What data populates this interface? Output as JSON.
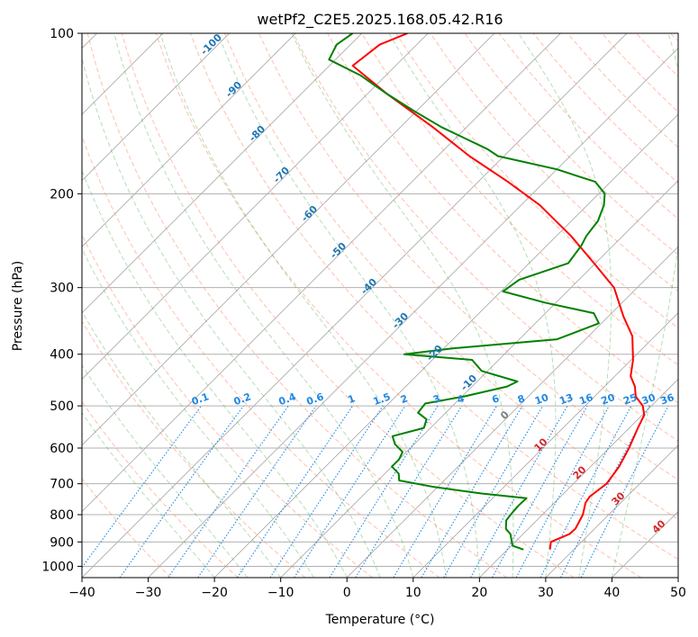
{
  "chart_data": {
    "type": "line",
    "title": "wetPf2_C2E5.2025.168.05.42.R16",
    "xlabel": "Temperature (°C)",
    "ylabel": "Pressure (hPa)",
    "xlim": [
      -40,
      50
    ],
    "ylim": [
      1050,
      100
    ],
    "y_scale": "log",
    "x_ticks": [
      -40,
      -30,
      -20,
      -10,
      0,
      10,
      20,
      30,
      40,
      50
    ],
    "y_ticks": [
      100,
      200,
      300,
      400,
      500,
      600,
      700,
      800,
      900,
      1000
    ],
    "skew": "temperature lines skewed 45°",
    "grid": true,
    "colors": {
      "temperature": "#ff0000",
      "dewpoint": "#008000",
      "isotherm": "#999999",
      "dry_adiabat": "#ff8c6a",
      "moist_adiabat": "#2ca02c",
      "mixing_ratio": "#1e88e5"
    },
    "series": [
      {
        "key": "temperature",
        "color": "#ff0000",
        "points": [
          [
            930,
            26.4
          ],
          [
            900,
            25.4
          ],
          [
            870,
            27.0
          ],
          [
            850,
            27.1
          ],
          [
            800,
            26.1
          ],
          [
            760,
            24.7
          ],
          [
            740,
            24.4
          ],
          [
            700,
            25.0
          ],
          [
            650,
            24.3
          ],
          [
            600,
            23.0
          ],
          [
            550,
            21.3
          ],
          [
            520,
            20.3
          ],
          [
            500,
            18.7
          ],
          [
            480,
            16.2
          ],
          [
            460,
            14.6
          ],
          [
            440,
            12.4
          ],
          [
            410,
            10.3
          ],
          [
            370,
            6.6
          ],
          [
            340,
            2.3
          ],
          [
            300,
            -3.5
          ],
          [
            270,
            -10.2
          ],
          [
            240,
            -17.8
          ],
          [
            210,
            -27.2
          ],
          [
            190,
            -35.5
          ],
          [
            170,
            -45.2
          ],
          [
            150,
            -55.1
          ],
          [
            130,
            -67.0
          ],
          [
            115,
            -76.5
          ],
          [
            105,
            -75.6
          ],
          [
            100,
            -73.1
          ]
        ]
      },
      {
        "key": "dewpoint",
        "color": "#008000",
        "points": [
          [
            930,
            22.4
          ],
          [
            915,
            20.2
          ],
          [
            900,
            19.5
          ],
          [
            870,
            18.1
          ],
          [
            850,
            16.6
          ],
          [
            820,
            15.4
          ],
          [
            800,
            15.2
          ],
          [
            770,
            15.0
          ],
          [
            745,
            15.1
          ],
          [
            730,
            7.6
          ],
          [
            710,
            -0.5
          ],
          [
            690,
            -6.8
          ],
          [
            670,
            -7.9
          ],
          [
            650,
            -10.0
          ],
          [
            630,
            -10.0
          ],
          [
            610,
            -10.6
          ],
          [
            590,
            -12.9
          ],
          [
            570,
            -14.5
          ],
          [
            550,
            -11.0
          ],
          [
            530,
            -11.9
          ],
          [
            515,
            -14.2
          ],
          [
            495,
            -14.5
          ],
          [
            480,
            -9.7
          ],
          [
            460,
            -4.7
          ],
          [
            450,
            -3.9
          ],
          [
            430,
            -10.9
          ],
          [
            410,
            -14.0
          ],
          [
            400,
            -25.1
          ],
          [
            390,
            -18.7
          ],
          [
            375,
            -4.3
          ],
          [
            350,
            -0.4
          ],
          [
            335,
            -2.7
          ],
          [
            320,
            -11.7
          ],
          [
            305,
            -19.7
          ],
          [
            290,
            -19.0
          ],
          [
            270,
            -14.1
          ],
          [
            250,
            -14.8
          ],
          [
            240,
            -15.5
          ],
          [
            225,
            -16.0
          ],
          [
            210,
            -17.5
          ],
          [
            200,
            -19.1
          ],
          [
            190,
            -22.3
          ],
          [
            180,
            -30.0
          ],
          [
            170,
            -40.9
          ],
          [
            165,
            -43.5
          ],
          [
            150,
            -53.8
          ],
          [
            140,
            -60.3
          ],
          [
            130,
            -67.0
          ],
          [
            120,
            -73.8
          ],
          [
            112,
            -81.0
          ],
          [
            105,
            -82.1
          ],
          [
            100,
            -81.4
          ]
        ]
      }
    ],
    "isotherm_labels": {
      "color": "#1f77b4",
      "items": [
        {
          "text": "-100",
          "t": -100
        },
        {
          "text": "-90",
          "t": -90
        },
        {
          "text": "-80",
          "t": -80
        },
        {
          "text": "-70",
          "t": -70
        },
        {
          "text": "-60",
          "t": -60
        },
        {
          "text": "-50",
          "t": -50
        },
        {
          "text": "-40",
          "t": -40
        },
        {
          "text": "-30",
          "t": -30
        },
        {
          "text": "-20",
          "t": -20
        },
        {
          "text": "-10",
          "t": -10
        },
        {
          "text": "0",
          "t": 0,
          "color": "#7f7f7f"
        },
        {
          "text": "10",
          "t": 10,
          "color": "#d62728"
        },
        {
          "text": "20",
          "t": 20,
          "color": "#d62728"
        },
        {
          "text": "30",
          "t": 30,
          "color": "#d62728"
        },
        {
          "text": "40",
          "t": 40,
          "color": "#d62728"
        }
      ]
    },
    "mixing_ratio_labels": {
      "color": "#1e88e5",
      "values": [
        "0.1",
        "0.2",
        "0.4",
        "0.6",
        "1",
        "1.5",
        "2",
        "3",
        "4",
        "6",
        "8",
        "10",
        "13",
        "16",
        "20",
        "25",
        "30",
        "36"
      ]
    }
  }
}
